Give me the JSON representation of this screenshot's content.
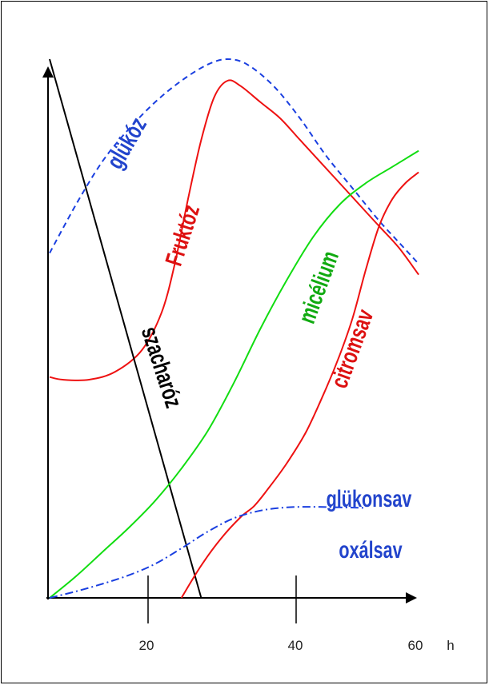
{
  "chart_data": {
    "type": "line",
    "xlabel": "h",
    "ylabel": "",
    "title": "",
    "xlim": [
      0,
      60
    ],
    "x_ticks": [
      "20",
      "40",
      "60"
    ],
    "x_unit": "h",
    "ylim": [
      0,
      100
    ],
    "series": [
      {
        "name": "glükóz",
        "color": "#1a3fe0",
        "dash": "dashed",
        "points": [
          [
            0,
            64
          ],
          [
            4,
            73
          ],
          [
            8,
            81
          ],
          [
            12,
            87
          ],
          [
            16,
            92
          ],
          [
            20,
            96
          ],
          [
            24,
            99
          ],
          [
            27,
            100
          ],
          [
            30,
            99
          ],
          [
            34,
            95
          ],
          [
            38,
            89
          ],
          [
            42,
            82
          ],
          [
            46,
            76
          ],
          [
            50,
            70
          ],
          [
            53,
            66
          ],
          [
            56,
            62
          ]
        ]
      },
      {
        "name": "Fruktóz",
        "color": "#ee1111",
        "dash": "solid",
        "points": [
          [
            0,
            41
          ],
          [
            2,
            40.5
          ],
          [
            6,
            40.5
          ],
          [
            10,
            42
          ],
          [
            14,
            46
          ],
          [
            17,
            53
          ],
          [
            19,
            62
          ],
          [
            21,
            74
          ],
          [
            23,
            85
          ],
          [
            25,
            93
          ],
          [
            27,
            96
          ],
          [
            29,
            95
          ],
          [
            32,
            92
          ],
          [
            35,
            89
          ],
          [
            38,
            85
          ],
          [
            41,
            81
          ],
          [
            44,
            77
          ],
          [
            47,
            73
          ],
          [
            50,
            69
          ],
          [
            53,
            65
          ],
          [
            56,
            60
          ]
        ]
      },
      {
        "name": "szacharóz",
        "color": "#000000",
        "dash": "solid",
        "points": [
          [
            0,
            100
          ],
          [
            23,
            0
          ]
        ]
      },
      {
        "name": "micélium",
        "color": "#11dd11",
        "dash": "solid",
        "points": [
          [
            0,
            0
          ],
          [
            4,
            4
          ],
          [
            8,
            8.5
          ],
          [
            12,
            13
          ],
          [
            16,
            18
          ],
          [
            20,
            24
          ],
          [
            24,
            31
          ],
          [
            28,
            40
          ],
          [
            32,
            50
          ],
          [
            36,
            59
          ],
          [
            40,
            67
          ],
          [
            44,
            73
          ],
          [
            48,
            77
          ],
          [
            52,
            80
          ],
          [
            56,
            83
          ]
        ]
      },
      {
        "name": "citromsav",
        "color": "#ee1111",
        "dash": "solid",
        "points": [
          [
            20,
            0
          ],
          [
            23,
            6
          ],
          [
            26,
            11
          ],
          [
            29,
            15
          ],
          [
            31,
            17
          ],
          [
            33,
            20
          ],
          [
            36,
            25
          ],
          [
            39,
            31
          ],
          [
            42,
            39
          ],
          [
            44,
            45
          ],
          [
            46,
            52
          ],
          [
            48,
            61
          ],
          [
            50,
            69
          ],
          [
            52,
            74
          ],
          [
            54,
            77
          ],
          [
            56,
            79
          ]
        ]
      },
      {
        "name": "glükonsav",
        "color": "#1a3fe0",
        "dash": "dashdot",
        "points": [
          [
            0,
            0
          ],
          [
            4,
            1.2
          ],
          [
            8,
            2.6
          ],
          [
            12,
            4.2
          ],
          [
            16,
            6.3
          ],
          [
            20,
            9.2
          ],
          [
            24,
            12.3
          ],
          [
            28,
            14.8
          ],
          [
            32,
            16.2
          ],
          [
            36,
            16.8
          ],
          [
            40,
            16.9
          ],
          [
            44,
            16.8
          ],
          [
            48,
            16.7
          ]
        ]
      }
    ],
    "annotations": [
      {
        "text": "glükóz",
        "color": "#2244cc"
      },
      {
        "text": "Fruktóz",
        "color": "#dd1111"
      },
      {
        "text": "micélium",
        "color": "#11aa11"
      },
      {
        "text": "szacharóz",
        "color": "#000000"
      },
      {
        "text": "citromsav",
        "color": "#dd1111"
      },
      {
        "text": "glükonsav",
        "color": "#2244cc"
      },
      {
        "text": "oxálsav",
        "color": "#2244cc"
      }
    ],
    "grid": false,
    "legend": "none"
  }
}
